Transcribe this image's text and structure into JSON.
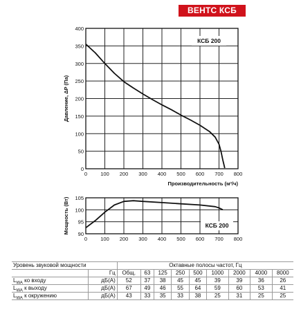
{
  "brand": "ВЕНТС КСБ",
  "chart_data": [
    {
      "type": "line",
      "name_label": "КСБ 200",
      "ylabel": "Давление, ΔP (Па)",
      "xlabel": "Производительность (м³/ч)",
      "xlim": [
        0,
        800
      ],
      "ylim": [
        0,
        400
      ],
      "x_ticks": [
        0,
        100,
        200,
        300,
        400,
        500,
        600,
        700,
        800
      ],
      "y_ticks": [
        0,
        50,
        100,
        150,
        200,
        250,
        300,
        350,
        400
      ],
      "grid": true,
      "series": [
        {
          "x": [
            0,
            50,
            100,
            150,
            200,
            250,
            300,
            350,
            400,
            450,
            500,
            550,
            600,
            650,
            680,
            700,
            710,
            720,
            730
          ],
          "y": [
            355,
            330,
            300,
            272,
            248,
            230,
            213,
            197,
            182,
            168,
            153,
            139,
            124,
            106,
            90,
            70,
            50,
            25,
            2
          ]
        }
      ]
    },
    {
      "type": "line",
      "name_label": "КСБ 200",
      "ylabel": "Мощность (Вт)",
      "xlim": [
        0,
        800
      ],
      "ylim": [
        90,
        105
      ],
      "x_ticks": [
        0,
        100,
        200,
        300,
        400,
        500,
        600,
        700,
        800
      ],
      "y_ticks": [
        90,
        95,
        100,
        105
      ],
      "grid": true,
      "series": [
        {
          "x": [
            0,
            50,
            100,
            150,
            200,
            250,
            300,
            400,
            500,
            600,
            680,
            700,
            720
          ],
          "y": [
            92.5,
            95.5,
            99,
            102,
            103.5,
            103.8,
            103.5,
            103,
            102.5,
            102,
            101.3,
            100.8,
            100
          ]
        }
      ]
    }
  ],
  "table": {
    "title": "Уровень звуковой мощности",
    "band_header": "Октавные полосы частот, Гц",
    "col_headers": [
      "Гц",
      "Общ.",
      "63",
      "125",
      "250",
      "500",
      "1000",
      "2000",
      "4000",
      "8000"
    ],
    "rows": [
      {
        "label_prefix": "L",
        "label_sub": "WA",
        "label_rest": " ко входу",
        "unit": "дБ(А)",
        "values": [
          "52",
          "37",
          "38",
          "45",
          "45",
          "39",
          "39",
          "36",
          "26"
        ]
      },
      {
        "label_prefix": "L",
        "label_sub": "WA",
        "label_rest": " к выходу",
        "unit": "дБ(А)",
        "values": [
          "67",
          "49",
          "46",
          "55",
          "64",
          "59",
          "60",
          "53",
          "41"
        ]
      },
      {
        "label_prefix": "L",
        "label_sub": "WA",
        "label_rest": " к окружению",
        "unit": "дБ(А)",
        "values": [
          "43",
          "33",
          "35",
          "33",
          "38",
          "25",
          "31",
          "25",
          "25"
        ]
      }
    ]
  }
}
